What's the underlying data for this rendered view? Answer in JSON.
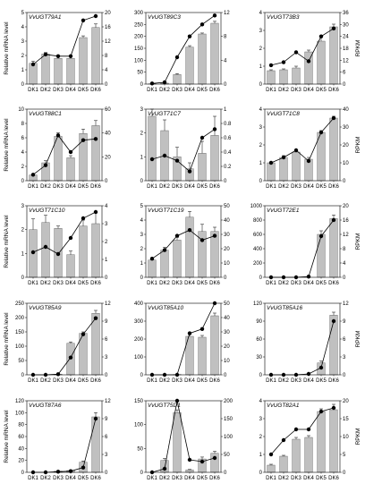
{
  "figure": {
    "left_axis_label": "Relative mRNA level",
    "right_axis_label": "RPKM"
  },
  "colors": {
    "bar_fill": "#c0c0c0",
    "bar_stroke": "#555555",
    "line": "#000000",
    "marker": "#000000"
  },
  "chart_data": [
    {
      "type": "bar+line",
      "title": "VvUGT79A1",
      "categories": [
        "DK1",
        "DK2",
        "DK3",
        "DK4",
        "DK5",
        "DK6"
      ],
      "bar_values": [
        1.45,
        2.1,
        1.8,
        1.8,
        3.25,
        3.95
      ],
      "bar_errors": [
        0.15,
        0.1,
        0.1,
        0.1,
        0.12,
        0.25
      ],
      "line_values": [
        5.5,
        8.3,
        7.8,
        7.8,
        17.8,
        19.0
      ],
      "left_ticks": [
        0,
        1,
        2,
        3,
        4,
        5
      ],
      "left_lim": [
        0,
        5
      ],
      "right_ticks": [
        0,
        4,
        8,
        12,
        16,
        20
      ],
      "right_lim": [
        0,
        20
      ],
      "show_left_title": true,
      "show_right_title": false,
      "show_x_ticks": false
    },
    {
      "type": "bar+line",
      "title": "VvUGT89C3",
      "categories": [
        "DK1",
        "DK2",
        "DK3",
        "DK4",
        "DK5",
        "DK6"
      ],
      "bar_values": [
        1,
        4,
        40,
        155,
        210,
        255
      ],
      "bar_errors": [
        0,
        1,
        4,
        6,
        4,
        8
      ],
      "line_values": [
        0.1,
        0.3,
        4.5,
        8,
        10,
        11.5
      ],
      "left_ticks": [
        0,
        50,
        100,
        150,
        200,
        250,
        300
      ],
      "left_lim": [
        0,
        300
      ],
      "right_ticks": [
        0,
        4,
        8,
        12
      ],
      "right_lim": [
        0,
        12
      ],
      "show_left_title": false,
      "show_right_title": false,
      "show_x_ticks": false
    },
    {
      "type": "bar+line",
      "title": "VvUGT73B3",
      "categories": [
        "DK1",
        "DK2",
        "DK3",
        "DK4",
        "DK5",
        "DK6"
      ],
      "bar_values": [
        0.75,
        0.8,
        0.9,
        1.8,
        2.4,
        3.2
      ],
      "bar_errors": [
        0.05,
        0.05,
        0.1,
        0.1,
        0.3,
        0.15
      ],
      "line_values": [
        9.5,
        11,
        16,
        11.5,
        24,
        28
      ],
      "left_ticks": [
        0,
        1,
        2,
        3,
        4
      ],
      "left_lim": [
        0,
        4
      ],
      "right_ticks": [
        0,
        6,
        12,
        18,
        24,
        30,
        36
      ],
      "right_lim": [
        0,
        36
      ],
      "show_left_title": false,
      "show_right_title": true,
      "show_x_ticks": false
    },
    {
      "type": "bar+line",
      "title": "VvUGT88C1",
      "categories": [
        "DK1",
        "DK2",
        "DK3",
        "DK4",
        "DK5",
        "DK6"
      ],
      "bar_values": [
        0.8,
        2.5,
        6.2,
        3.2,
        6.6,
        7.7
      ],
      "bar_errors": [
        0.1,
        0.3,
        0.5,
        0.3,
        0.6,
        0.7
      ],
      "line_values": [
        5,
        13,
        38,
        24,
        34,
        35
      ],
      "left_ticks": [
        0,
        2,
        4,
        6,
        8,
        10
      ],
      "left_lim": [
        0,
        10
      ],
      "right_ticks": [
        0,
        20,
        40,
        60
      ],
      "right_lim": [
        0,
        60
      ],
      "show_left_title": true,
      "show_right_title": false,
      "show_x_ticks": false
    },
    {
      "type": "bar+line",
      "title": "VvUGT71C7",
      "categories": [
        "DK1",
        "DK2",
        "DK3",
        "DK4",
        "DK5",
        "DK6"
      ],
      "bar_values": [
        2.7,
        2.1,
        1.0,
        0.5,
        1.15,
        1.9
      ],
      "bar_errors": [
        0.3,
        0.45,
        0.4,
        0.25,
        0.5,
        0.8
      ],
      "line_values": [
        0.3,
        0.35,
        0.28,
        0.13,
        0.6,
        0.72
      ],
      "left_ticks": [
        0,
        1,
        2,
        3
      ],
      "left_lim": [
        0,
        3
      ],
      "right_ticks": [
        0,
        0.2,
        0.4,
        0.6,
        0.8,
        1.0
      ],
      "right_lim": [
        0,
        1
      ],
      "show_left_title": false,
      "show_right_title": false,
      "show_x_ticks": false
    },
    {
      "type": "bar+line",
      "title": "VvUGT71C8",
      "categories": [
        "DK1",
        "DK2",
        "DK3",
        "DK4",
        "DK5",
        "DK6"
      ],
      "bar_values": [
        1.0,
        1.3,
        1.6,
        1.2,
        2.7,
        3.5
      ],
      "bar_errors": [
        0.05,
        0.1,
        0.1,
        0.1,
        0.1,
        0.1
      ],
      "line_values": [
        10,
        13,
        17,
        11,
        27,
        35
      ],
      "left_ticks": [
        0,
        1,
        2,
        3,
        4
      ],
      "left_lim": [
        0,
        4
      ],
      "right_ticks": [
        0,
        10,
        20,
        30,
        40
      ],
      "right_lim": [
        0,
        40
      ],
      "show_left_title": false,
      "show_right_title": true,
      "show_x_ticks": false
    },
    {
      "type": "bar+line",
      "title": "VvUGT71C10",
      "categories": [
        "DK1",
        "DK2",
        "DK3",
        "DK4",
        "DK5",
        "DK6"
      ],
      "bar_values": [
        2.0,
        2.3,
        2.05,
        0.95,
        2.15,
        2.25
      ],
      "bar_errors": [
        0.45,
        0.3,
        0.1,
        0.15,
        0.25,
        0.45
      ],
      "line_values": [
        1.4,
        1.7,
        1.3,
        2.2,
        3.3,
        3.65
      ],
      "left_ticks": [
        0,
        1,
        2,
        3
      ],
      "left_lim": [
        0,
        3
      ],
      "right_ticks": [
        0,
        1,
        2,
        3,
        4
      ],
      "right_lim": [
        0,
        4
      ],
      "show_left_title": true,
      "show_right_title": false,
      "show_x_ticks": true
    },
    {
      "type": "bar+line",
      "title": "VvUGT71C19",
      "categories": [
        "DK1",
        "DK2",
        "DK3",
        "DK4",
        "DK5",
        "DK6"
      ],
      "bar_values": [
        1.2,
        1.9,
        2.6,
        4.2,
        3.2,
        3.2
      ],
      "bar_errors": [
        0.1,
        0.2,
        0.2,
        0.4,
        0.5,
        0.3
      ],
      "line_values": [
        13,
        19,
        29,
        33,
        26,
        29
      ],
      "left_ticks": [
        0,
        1,
        2,
        3,
        4,
        5
      ],
      "left_lim": [
        0,
        5
      ],
      "right_ticks": [
        0,
        10,
        20,
        30,
        40,
        50
      ],
      "right_lim": [
        0,
        50
      ],
      "show_left_title": false,
      "show_right_title": false,
      "show_x_ticks": true
    },
    {
      "type": "bar+line",
      "title": "VvUGT72E1",
      "categories": [
        "DK1",
        "DK2",
        "DK3",
        "DK4",
        "DK5",
        "DK6"
      ],
      "bar_values": [
        0,
        0,
        0,
        0,
        600,
        820
      ],
      "bar_errors": [
        0,
        0,
        0,
        0,
        50,
        50
      ],
      "line_values": [
        0,
        0,
        0,
        0.2,
        11.5,
        16
      ],
      "left_ticks": [
        0,
        200,
        400,
        600,
        800,
        1000
      ],
      "left_lim": [
        0,
        1000
      ],
      "right_ticks": [
        0,
        4,
        8,
        12,
        16,
        20
      ],
      "right_lim": [
        0,
        20
      ],
      "show_left_title": false,
      "show_right_title": true,
      "show_x_ticks": true
    },
    {
      "type": "bar+line",
      "title": "VvUGT85A9",
      "categories": [
        "DK1",
        "DK2",
        "DK3",
        "DK4",
        "DK5",
        "DK6"
      ],
      "bar_values": [
        0,
        0,
        2,
        110,
        145,
        215
      ],
      "bar_errors": [
        0,
        0,
        0,
        5,
        5,
        10
      ],
      "line_values": [
        0,
        0,
        0.1,
        2.9,
        6.8,
        9.5
      ],
      "left_ticks": [
        0,
        50,
        100,
        150,
        200,
        250
      ],
      "left_lim": [
        0,
        250
      ],
      "right_ticks": [
        0,
        3,
        6,
        9,
        12
      ],
      "right_lim": [
        0,
        12
      ],
      "show_left_title": true,
      "show_right_title": false,
      "show_x_ticks": false
    },
    {
      "type": "bar+line",
      "title": "VvUGT85A10",
      "categories": [
        "DK1",
        "DK2",
        "DK3",
        "DK4",
        "DK5",
        "DK6"
      ],
      "bar_values": [
        0,
        0,
        2,
        215,
        210,
        330
      ],
      "bar_errors": [
        0,
        0,
        0,
        12,
        10,
        15
      ],
      "line_values": [
        0,
        0,
        0,
        29,
        32,
        50
      ],
      "left_ticks": [
        0,
        100,
        200,
        300,
        400
      ],
      "left_lim": [
        0,
        400
      ],
      "right_ticks": [
        0,
        10,
        20,
        30,
        40,
        50
      ],
      "right_lim": [
        0,
        50
      ],
      "show_left_title": false,
      "show_right_title": false,
      "show_x_ticks": false
    },
    {
      "type": "bar+line",
      "title": "VvUGT85A16",
      "categories": [
        "DK1",
        "DK2",
        "DK3",
        "DK4",
        "DK5",
        "DK6"
      ],
      "bar_values": [
        0,
        0,
        0,
        0,
        20,
        100
      ],
      "bar_errors": [
        0,
        0,
        0,
        0,
        3,
        5
      ],
      "line_values": [
        0,
        0,
        0,
        0.15,
        1.2,
        9.0
      ],
      "left_ticks": [
        0,
        30,
        60,
        90,
        120
      ],
      "left_lim": [
        0,
        120
      ],
      "right_ticks": [
        0,
        3,
        6,
        9,
        12
      ],
      "right_lim": [
        0,
        12
      ],
      "show_left_title": false,
      "show_right_title": true,
      "show_x_ticks": false
    },
    {
      "type": "bar+line",
      "title": "VvUGT87A6",
      "categories": [
        "DK1",
        "DK2",
        "DK3",
        "DK4",
        "DK5",
        "DK6"
      ],
      "bar_values": [
        0,
        0,
        2,
        3,
        17,
        93
      ],
      "bar_errors": [
        0,
        0,
        0.5,
        0.5,
        2,
        7
      ],
      "line_values": [
        0,
        0,
        0.1,
        0.2,
        0.8,
        9.0
      ],
      "left_ticks": [
        0,
        20,
        40,
        60,
        80,
        100,
        120
      ],
      "left_lim": [
        0,
        120
      ],
      "right_ticks": [
        0,
        3,
        6,
        9,
        12
      ],
      "right_lim": [
        0,
        12
      ],
      "show_left_title": true,
      "show_right_title": false,
      "show_x_ticks": true
    },
    {
      "type": "bar+line",
      "title": "VvUGT75D1",
      "categories": [
        "DK1",
        "DK2",
        "DK3",
        "DK4",
        "DK5",
        "DK6"
      ],
      "bar_values": [
        0,
        25,
        125,
        5,
        28,
        40
      ],
      "bar_errors": [
        0,
        4,
        6,
        1,
        4,
        4
      ],
      "line_values": [
        0,
        10,
        200,
        35,
        30,
        40
      ],
      "left_ticks": [
        0,
        50,
        100,
        150
      ],
      "left_lim": [
        0,
        150
      ],
      "right_ticks": [
        0,
        50,
        100,
        150,
        200
      ],
      "right_lim": [
        0,
        200
      ],
      "show_left_title": false,
      "show_right_title": false,
      "show_x_ticks": true
    },
    {
      "type": "bar+line",
      "title": "VvUGT82A1",
      "categories": [
        "DK1",
        "DK2",
        "DK3",
        "DK4",
        "DK5",
        "DK6"
      ],
      "bar_values": [
        0.4,
        0.9,
        1.85,
        1.95,
        3.4,
        3.5
      ],
      "bar_errors": [
        0.05,
        0.05,
        0.1,
        0.1,
        0.15,
        0.3
      ],
      "line_values": [
        5,
        9,
        12,
        12,
        17,
        18
      ],
      "left_ticks": [
        0,
        1,
        2,
        3,
        4
      ],
      "left_lim": [
        0,
        4
      ],
      "right_ticks": [
        0,
        5,
        10,
        15,
        20
      ],
      "right_lim": [
        0,
        20
      ],
      "show_left_title": false,
      "show_right_title": true,
      "show_x_ticks": true
    }
  ]
}
